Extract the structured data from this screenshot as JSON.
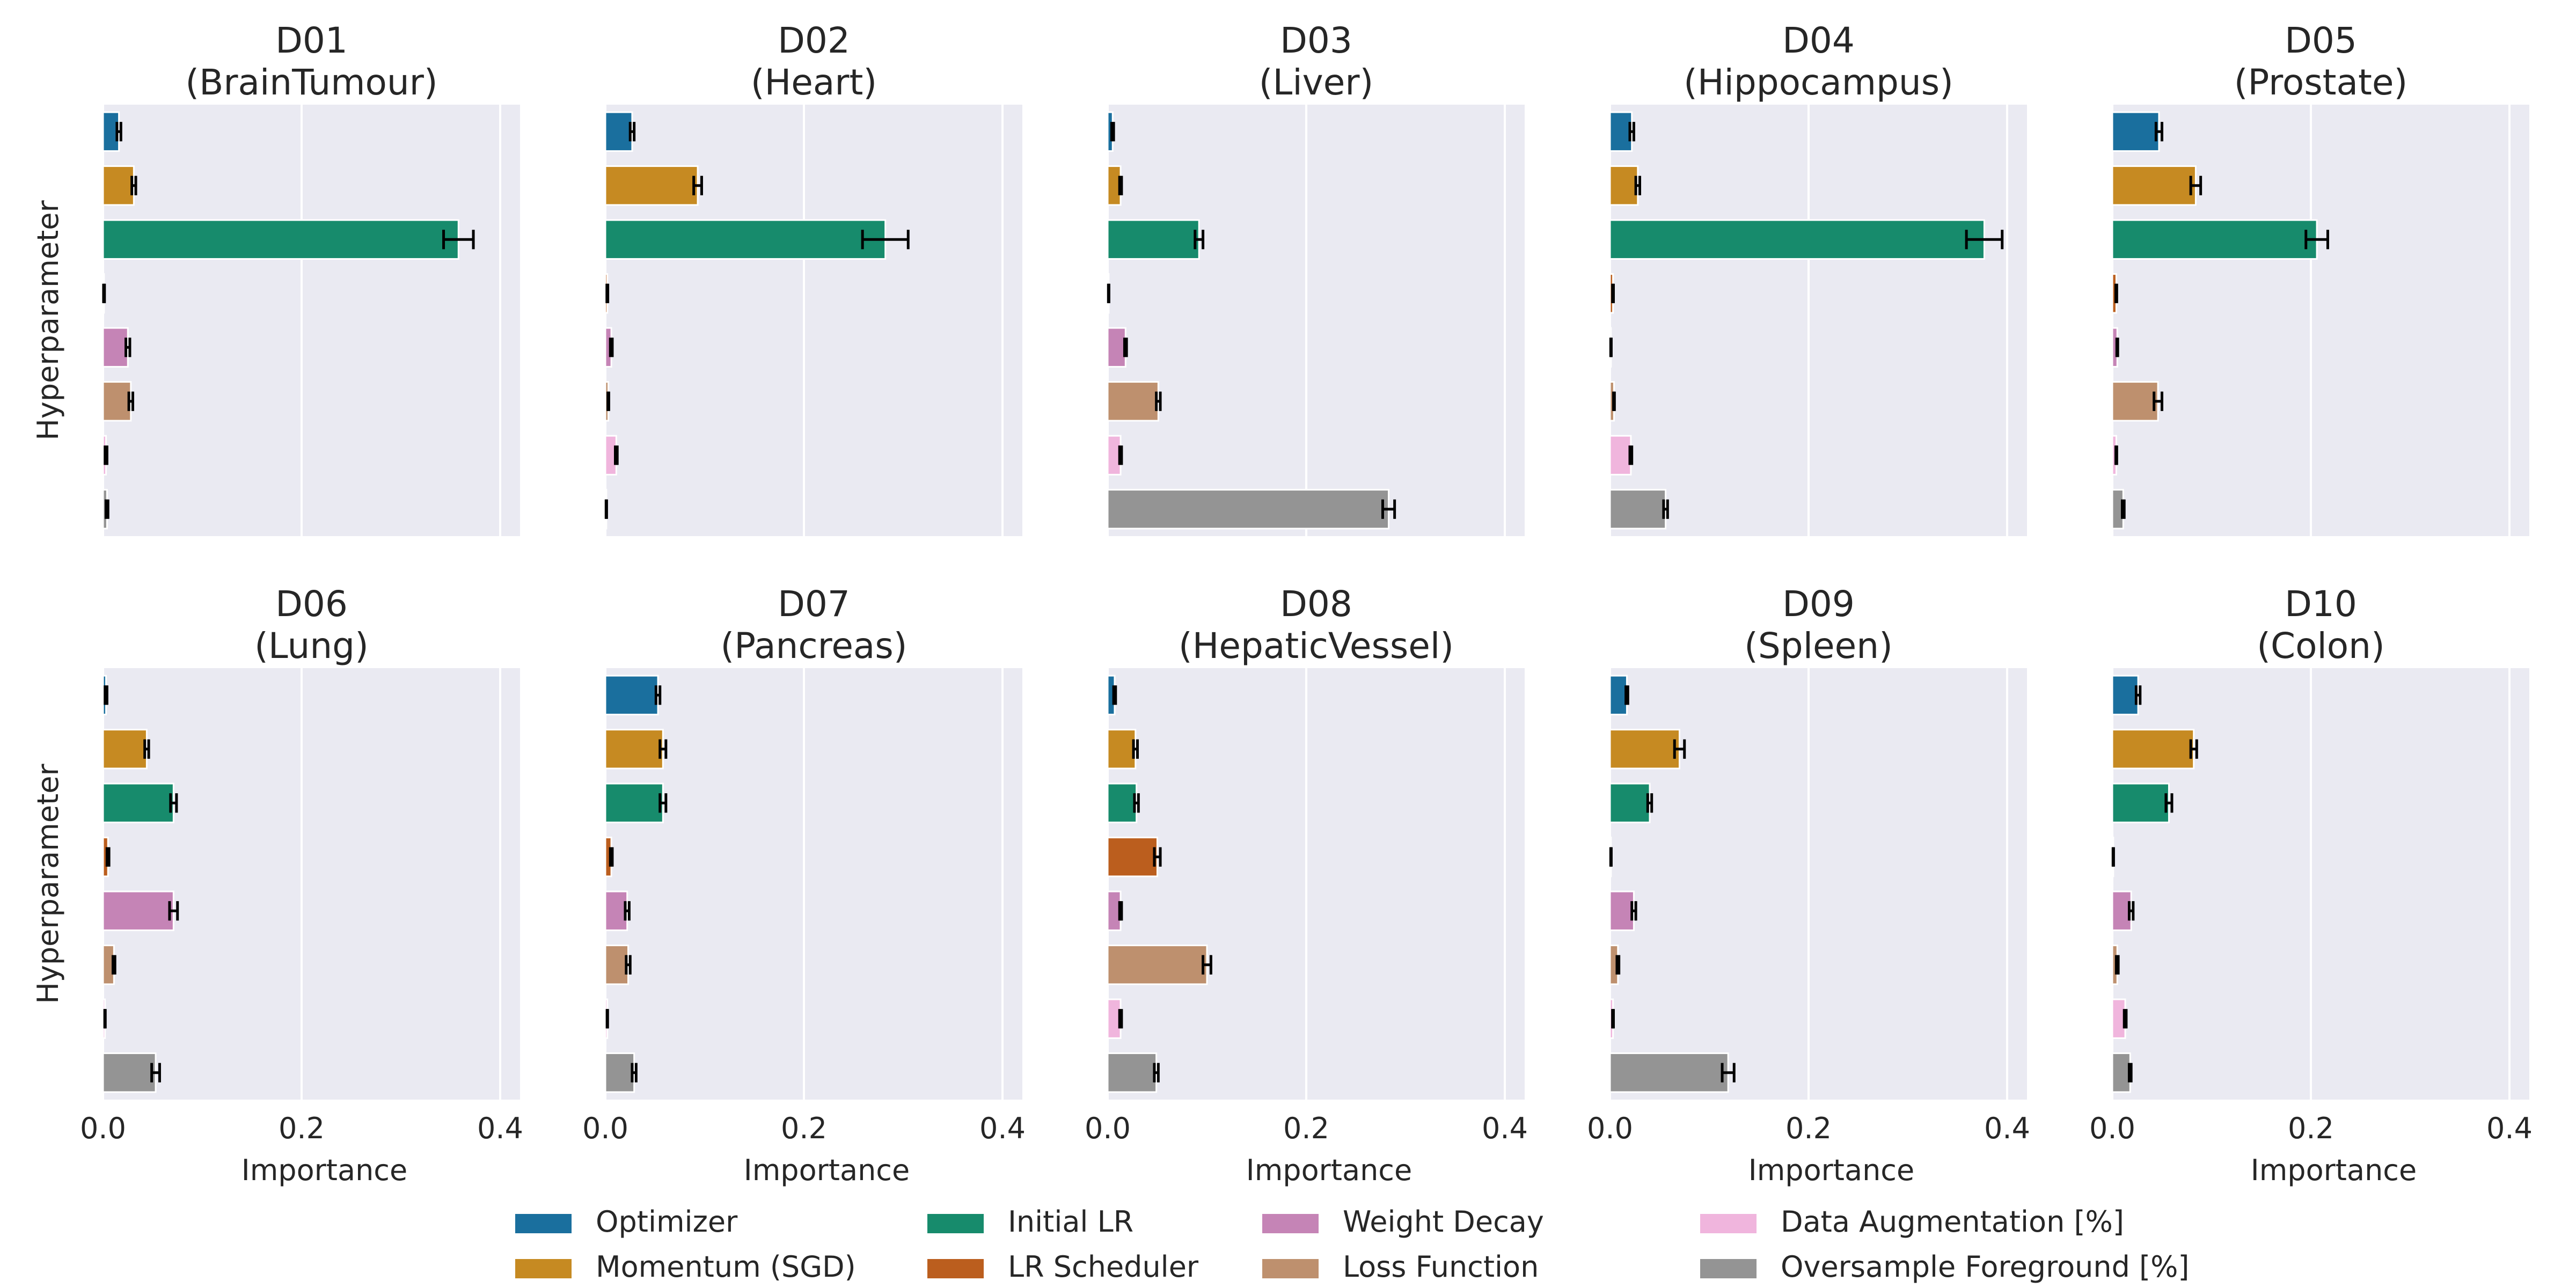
{
  "figure": {
    "ylabel": "Hyperparameter",
    "xlabel": "Importance",
    "xlim": [
      0,
      0.42
    ],
    "xticks": [
      0.0,
      0.2,
      0.4
    ],
    "xtick_labels": [
      "0.0",
      "0.2",
      "0.4"
    ],
    "grid": true,
    "background_color": "#EAEAF2",
    "grid_color": "#FFFFFF",
    "legend_position": "bottom-center"
  },
  "legend": [
    {
      "label": "Optimizer",
      "color": "#1A6F9E"
    },
    {
      "label": "Momentum (SGD)",
      "color": "#C68A22"
    },
    {
      "label": "Initial LR",
      "color": "#178B6C"
    },
    {
      "label": "LR Scheduler",
      "color": "#BB5E1E"
    },
    {
      "label": "Weight Decay",
      "color": "#C584B6"
    },
    {
      "label": "Loss Function",
      "color": "#BE906E"
    },
    {
      "label": "Data Augmentation [%]",
      "color": "#F0B5DD"
    },
    {
      "label": "Oversample Foreground [%]",
      "color": "#949494"
    }
  ],
  "chart_data": [
    {
      "type": "bar",
      "orientation": "horizontal",
      "title": "D01\n(BrainTumour)",
      "xlabel": "",
      "ylabel": "Hyperparameter",
      "xlim": [
        0,
        0.42
      ],
      "categories": [
        "Optimizer",
        "Momentum (SGD)",
        "Initial LR",
        "LR Scheduler",
        "Weight Decay",
        "Loss Function",
        "Data Augmentation [%]",
        "Oversample Foreground [%]"
      ],
      "values": [
        0.016,
        0.031,
        0.358,
        0.001,
        0.025,
        0.028,
        0.003,
        0.004
      ],
      "errors": [
        0.002,
        0.002,
        0.015,
        0.0005,
        0.002,
        0.002,
        0.001,
        0.001
      ]
    },
    {
      "type": "bar",
      "orientation": "horizontal",
      "title": "D02\n(Heart)",
      "xlabel": "",
      "ylabel": "",
      "xlim": [
        0,
        0.42
      ],
      "categories": [
        "Optimizer",
        "Momentum (SGD)",
        "Initial LR",
        "LR Scheduler",
        "Weight Decay",
        "Loss Function",
        "Data Augmentation [%]",
        "Oversample Foreground [%]"
      ],
      "values": [
        0.027,
        0.093,
        0.282,
        0.002,
        0.006,
        0.003,
        0.011,
        0.001
      ],
      "errors": [
        0.002,
        0.004,
        0.023,
        0.0005,
        0.001,
        0.0005,
        0.001,
        0.0003
      ]
    },
    {
      "type": "bar",
      "orientation": "horizontal",
      "title": "D03\n(Liver)",
      "xlabel": "",
      "ylabel": "",
      "xlim": [
        0,
        0.42
      ],
      "categories": [
        "Optimizer",
        "Momentum (SGD)",
        "Initial LR",
        "LR Scheduler",
        "Weight Decay",
        "Loss Function",
        "Data Augmentation [%]",
        "Oversample Foreground [%]"
      ],
      "values": [
        0.005,
        0.013,
        0.092,
        0.001,
        0.018,
        0.051,
        0.013,
        0.283
      ],
      "errors": [
        0.001,
        0.001,
        0.004,
        0.0003,
        0.001,
        0.002,
        0.001,
        0.006
      ]
    },
    {
      "type": "bar",
      "orientation": "horizontal",
      "title": "D04\n(Hippocampus)",
      "xlabel": "",
      "ylabel": "",
      "xlim": [
        0,
        0.42
      ],
      "categories": [
        "Optimizer",
        "Momentum (SGD)",
        "Initial LR",
        "LR Scheduler",
        "Weight Decay",
        "Loss Function",
        "Data Augmentation [%]",
        "Oversample Foreground [%]"
      ],
      "values": [
        0.022,
        0.028,
        0.377,
        0.003,
        0.001,
        0.004,
        0.021,
        0.056
      ],
      "errors": [
        0.002,
        0.002,
        0.018,
        0.0005,
        0.0003,
        0.0005,
        0.001,
        0.002
      ]
    },
    {
      "type": "bar",
      "orientation": "horizontal",
      "title": "D05\n(Prostate)",
      "xlabel": "",
      "ylabel": "",
      "xlim": [
        0,
        0.42
      ],
      "categories": [
        "Optimizer",
        "Momentum (SGD)",
        "Initial LR",
        "LR Scheduler",
        "Weight Decay",
        "Loss Function",
        "Data Augmentation [%]",
        "Oversample Foreground [%]"
      ],
      "values": [
        0.047,
        0.084,
        0.206,
        0.004,
        0.005,
        0.046,
        0.004,
        0.011
      ],
      "errors": [
        0.003,
        0.005,
        0.011,
        0.0005,
        0.0005,
        0.004,
        0.0005,
        0.001
      ]
    },
    {
      "type": "bar",
      "orientation": "horizontal",
      "title": "D06\n(Lung)",
      "xlabel": "Importance",
      "ylabel": "Hyperparameter",
      "xlim": [
        0,
        0.42
      ],
      "categories": [
        "Optimizer",
        "Momentum (SGD)",
        "Initial LR",
        "LR Scheduler",
        "Weight Decay",
        "Loss Function",
        "Data Augmentation [%]",
        "Oversample Foreground [%]"
      ],
      "values": [
        0.003,
        0.044,
        0.071,
        0.005,
        0.071,
        0.011,
        0.002,
        0.053
      ],
      "errors": [
        0.001,
        0.002,
        0.003,
        0.001,
        0.004,
        0.001,
        0.0003,
        0.004
      ]
    },
    {
      "type": "bar",
      "orientation": "horizontal",
      "title": "D07\n(Pancreas)",
      "xlabel": "Importance",
      "ylabel": "",
      "xlim": [
        0,
        0.42
      ],
      "categories": [
        "Optimizer",
        "Momentum (SGD)",
        "Initial LR",
        "LR Scheduler",
        "Weight Decay",
        "Loss Function",
        "Data Augmentation [%]",
        "Oversample Foreground [%]"
      ],
      "values": [
        0.053,
        0.058,
        0.058,
        0.006,
        0.022,
        0.023,
        0.002,
        0.029
      ],
      "errors": [
        0.002,
        0.003,
        0.003,
        0.001,
        0.002,
        0.002,
        0.0003,
        0.002
      ]
    },
    {
      "type": "bar",
      "orientation": "horizontal",
      "title": "D08\n(HepaticVessel)",
      "xlabel": "Importance",
      "ylabel": "",
      "xlim": [
        0,
        0.42
      ],
      "categories": [
        "Optimizer",
        "Momentum (SGD)",
        "Initial LR",
        "LR Scheduler",
        "Weight Decay",
        "Loss Function",
        "Data Augmentation [%]",
        "Oversample Foreground [%]"
      ],
      "values": [
        0.007,
        0.028,
        0.029,
        0.05,
        0.013,
        0.1,
        0.013,
        0.049
      ],
      "errors": [
        0.001,
        0.002,
        0.002,
        0.003,
        0.001,
        0.004,
        0.001,
        0.002
      ]
    },
    {
      "type": "bar",
      "orientation": "horizontal",
      "title": "D09\n(Spleen)",
      "xlabel": "Importance",
      "ylabel": "",
      "xlim": [
        0,
        0.42
      ],
      "categories": [
        "Optimizer",
        "Momentum (SGD)",
        "Initial LR",
        "LR Scheduler",
        "Weight Decay",
        "Loss Function",
        "Data Augmentation [%]",
        "Oversample Foreground [%]"
      ],
      "values": [
        0.017,
        0.07,
        0.04,
        0.001,
        0.024,
        0.008,
        0.003,
        0.119
      ],
      "errors": [
        0.001,
        0.005,
        0.002,
        0.0003,
        0.002,
        0.001,
        0.0005,
        0.006
      ]
    },
    {
      "type": "bar",
      "orientation": "horizontal",
      "title": "D10\n(Colon)",
      "xlabel": "Importance",
      "ylabel": "",
      "xlim": [
        0,
        0.42
      ],
      "categories": [
        "Optimizer",
        "Momentum (SGD)",
        "Initial LR",
        "LR Scheduler",
        "Weight Decay",
        "Loss Function",
        "Data Augmentation [%]",
        "Oversample Foreground [%]"
      ],
      "values": [
        0.026,
        0.082,
        0.057,
        0.001,
        0.019,
        0.005,
        0.013,
        0.018
      ],
      "errors": [
        0.002,
        0.003,
        0.003,
        0.0003,
        0.002,
        0.001,
        0.001,
        0.001
      ]
    }
  ]
}
